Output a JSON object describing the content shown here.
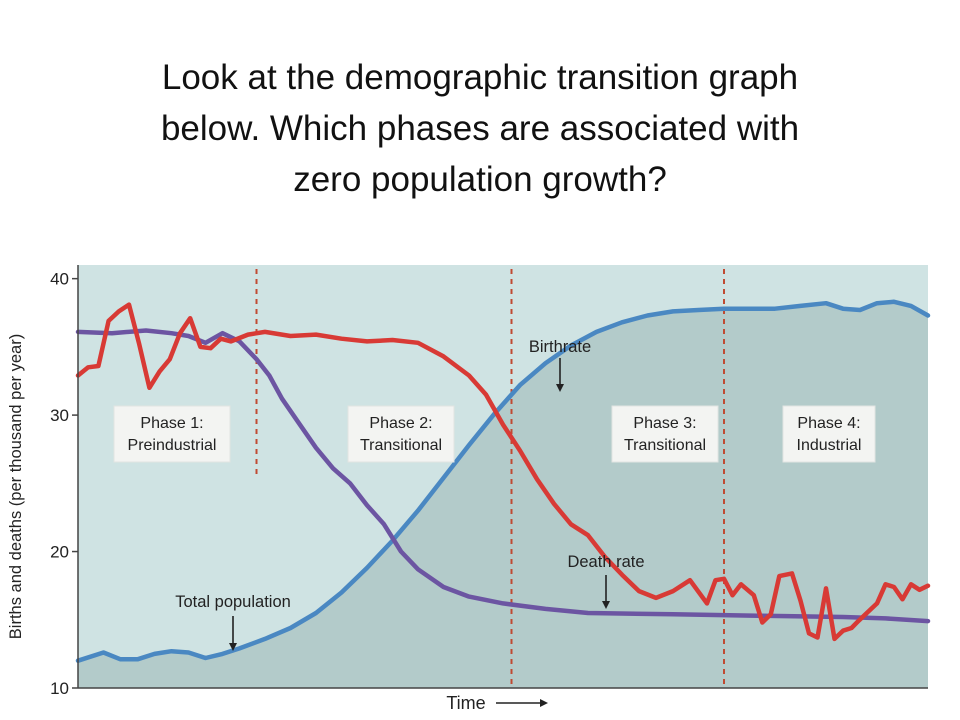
{
  "question": {
    "line1": "Look at the demographic transition graph",
    "line2": "below.  Which phases are associated with",
    "line3": "zero population growth?"
  },
  "chart_data": {
    "type": "line",
    "title": "",
    "ylabel": "Births and deaths (per thousand per year)",
    "xlabel": "Time",
    "ylim": [
      10,
      41
    ],
    "xlim": [
      0,
      100
    ],
    "y_ticks": [
      10,
      20,
      30,
      40
    ],
    "grid": false,
    "colors": {
      "background": "#cfe3e3",
      "shaded_region": "#b3cbca",
      "birthrate": "#d83a35",
      "death_rate": "#6c55a2",
      "total_population": "#4a88c2",
      "phase_divider": "#c04a32"
    },
    "phase_boundaries": [
      21,
      51,
      76
    ],
    "phases": [
      {
        "line1": "Phase 1:",
        "line2": "Preindustrial"
      },
      {
        "line1": "Phase 2:",
        "line2": "Transitional"
      },
      {
        "line1": "Phase 3:",
        "line2": "Transitional"
      },
      {
        "line1": "Phase 4:",
        "line2": "Industrial"
      }
    ],
    "series": [
      {
        "key": "birthrate",
        "name": "Birthrate",
        "x": [
          0,
          1.2,
          2.4,
          3.6,
          4.8,
          6.0,
          7.2,
          8.4,
          9.6,
          10.8,
          12.0,
          13.2,
          14.4,
          15.6,
          16.8,
          18,
          20,
          22,
          25,
          28,
          31,
          34,
          37,
          40,
          43,
          46,
          48,
          50,
          52,
          54,
          56,
          58,
          60,
          62,
          64,
          66,
          68,
          70,
          72,
          74,
          75,
          76,
          77,
          78,
          79.5,
          80.5,
          81.5,
          82.5,
          84,
          85,
          86,
          87,
          88,
          89,
          90,
          91,
          91.8,
          92.8,
          94,
          95,
          96,
          97,
          98,
          99,
          100
        ],
        "y": [
          32.9,
          33.5,
          33.6,
          36.9,
          37.6,
          38.1,
          35.2,
          32,
          33.2,
          34.1,
          36,
          37.1,
          35,
          34.9,
          35.6,
          35.4,
          35.9,
          36.1,
          35.8,
          35.9,
          35.6,
          35.4,
          35.5,
          35.3,
          34.3,
          32.9,
          31.5,
          29.3,
          27.4,
          25.3,
          23.5,
          22,
          21.2,
          19.6,
          18.3,
          17.1,
          16.6,
          17.1,
          17.9,
          16.2,
          17.9,
          18,
          16.8,
          17.6,
          16.8,
          14.8,
          15.4,
          18.2,
          18.4,
          16.4,
          14,
          13.7,
          17.3,
          13.6,
          14.2,
          14.4,
          14.9,
          15.5,
          16.2,
          17.6,
          17.4,
          16.5,
          17.6,
          17.2,
          17.5
        ]
      },
      {
        "key": "death_rate",
        "name": "Death rate",
        "x": [
          0,
          4,
          8,
          11,
          13,
          15,
          17,
          19,
          21,
          22.5,
          24,
          26,
          28,
          30,
          32,
          34,
          36,
          38,
          40,
          43,
          46,
          50,
          55,
          60,
          70,
          80,
          90,
          95,
          100
        ],
        "y": [
          36.1,
          36,
          36.2,
          36,
          35.8,
          35.3,
          36,
          35.4,
          34.1,
          32.9,
          31.2,
          29.4,
          27.6,
          26.1,
          25,
          23.4,
          22,
          20,
          18.7,
          17.4,
          16.7,
          16.2,
          15.8,
          15.5,
          15.4,
          15.3,
          15.2,
          15.1,
          14.9
        ]
      },
      {
        "key": "total_population",
        "name": "Total population",
        "x": [
          0,
          3,
          5,
          7,
          9,
          11,
          13,
          15,
          17,
          19,
          22,
          25,
          28,
          31,
          34,
          37,
          40,
          43,
          46,
          49,
          52,
          55,
          58,
          61,
          64,
          67,
          70,
          73,
          76,
          79,
          82,
          85,
          88,
          90,
          92,
          94,
          96,
          98,
          100
        ],
        "y": [
          12,
          12.6,
          12.1,
          12.1,
          12.5,
          12.7,
          12.6,
          12.2,
          12.5,
          12.9,
          13.6,
          14.4,
          15.5,
          17,
          18.8,
          20.8,
          23,
          25.4,
          27.8,
          30.1,
          32.2,
          33.8,
          35.1,
          36.1,
          36.8,
          37.3,
          37.6,
          37.7,
          37.8,
          37.8,
          37.8,
          38,
          38.2,
          37.8,
          37.7,
          38.2,
          38.3,
          38,
          37.3
        ]
      }
    ],
    "annotations": [
      {
        "key": "birthrate",
        "text": "Birthrate"
      },
      {
        "key": "death_rate",
        "text": "Death rate"
      },
      {
        "key": "total_population",
        "text": "Total population"
      }
    ]
  }
}
